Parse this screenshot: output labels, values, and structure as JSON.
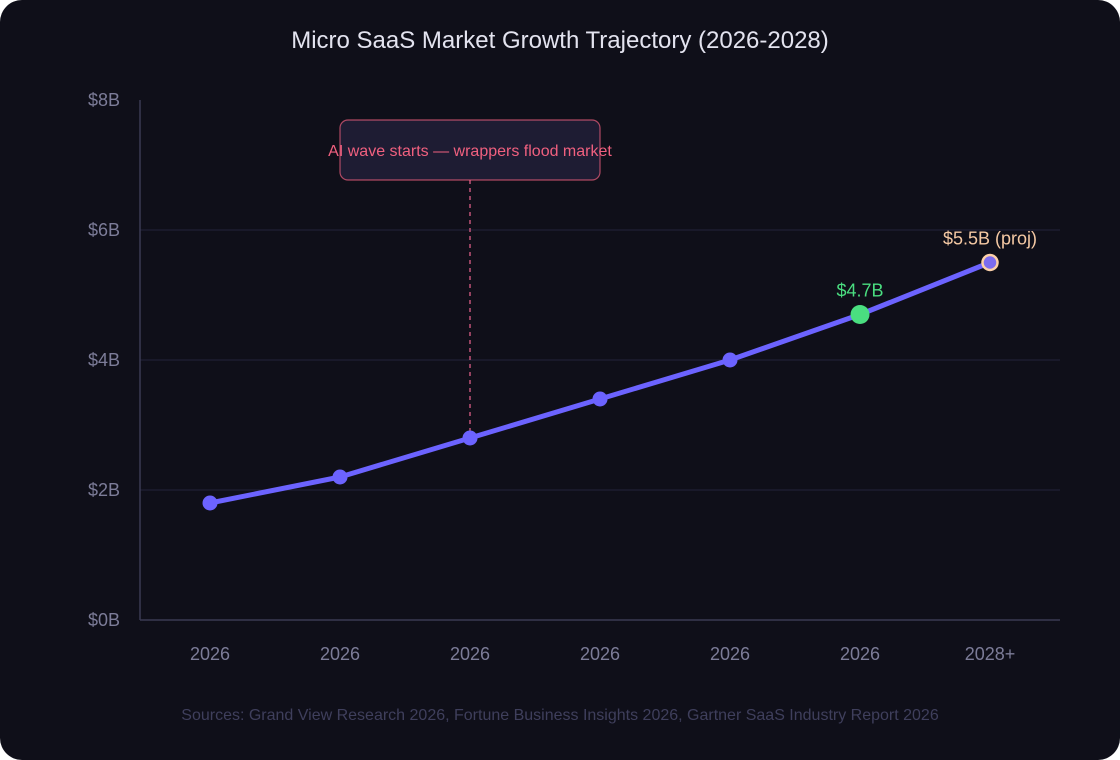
{
  "chart_data": {
    "type": "line",
    "title": "Micro SaaS Market Growth Trajectory (2026-2028)",
    "xlabel": "",
    "ylabel": "",
    "categories": [
      "2026",
      "2026",
      "2026",
      "2026",
      "2026",
      "2026",
      "2028+"
    ],
    "series": [
      {
        "values": [
          1.8,
          2.2,
          2.8,
          3.4,
          4.0,
          4.7,
          5.5
        ]
      }
    ],
    "y_ticks": [
      "$0B",
      "$2B",
      "$4B",
      "$6B",
      "$8B"
    ],
    "ylim": [
      0,
      8
    ],
    "y_unit": "$B",
    "grid": true,
    "data_labels": [
      {
        "index": 5,
        "text": "$4.7B"
      },
      {
        "index": 6,
        "text": "$5.5B (proj)"
      }
    ],
    "annotation": {
      "index": 2,
      "text": "AI wave starts — wrappers flood market"
    },
    "source": "Sources: Grand View Research 2026, Fortune Business Insights 2026, Gartner SaaS Industry Report 2026"
  },
  "colors": {
    "background": "#0f0f19",
    "line": "#6c63ff",
    "highlight": "#4ade80",
    "projection_fill": "#7c6cf0",
    "projection_ring": "#fcd0a8",
    "projection_label": "#f5c9a4",
    "annotation_text": "#f0607f",
    "annotation_border": "#f0607f",
    "annotation_fill": "#1e1c33",
    "grid": "#23233a",
    "axis": "#3a3a52"
  }
}
